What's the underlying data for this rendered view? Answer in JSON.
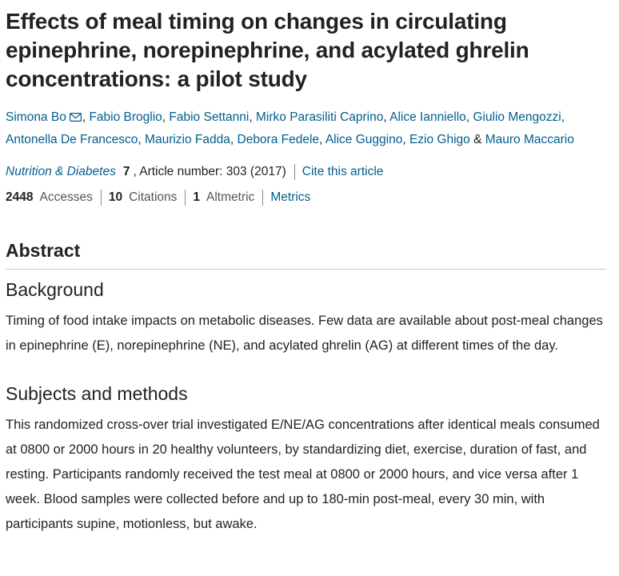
{
  "article": {
    "title": "Effects of meal timing on changes in circulating epinephrine, norepinephrine, and acylated ghrelin concentrations: a pilot study",
    "authors": [
      "Simona Bo",
      "Fabio Broglio",
      "Fabio Settanni",
      "Mirko Parasiliti Caprino",
      "Alice Ianniello",
      "Giulio Mengozzi",
      "Antonella De Francesco",
      "Maurizio Fadda",
      "Debora Fedele",
      "Alice Guggino",
      "Ezio Ghigo",
      "Mauro Maccario"
    ],
    "author_separator": ", ",
    "author_conjunction": " & ",
    "journal": "Nutrition & Diabetes",
    "volume": "7",
    "article_number": ", Article number: 303 (2017)",
    "cite_label": "Cite this article",
    "metrics": {
      "accesses_count": "2448",
      "accesses_label": "Accesses",
      "citations_count": "10",
      "citations_label": "Citations",
      "altmetric_count": "1",
      "altmetric_label": "Altmetric",
      "metrics_link": "Metrics"
    }
  },
  "abstract": {
    "heading": "Abstract",
    "sections": [
      {
        "heading": "Background",
        "text": "Timing of food intake impacts on metabolic diseases. Few data are available about post-meal changes in epinephrine (E), norepinephrine (NE), and acylated ghrelin (AG) at different times of the day."
      },
      {
        "heading": "Subjects and methods",
        "text": "This randomized cross-over trial investigated E/NE/AG concentrations after identical meals consumed at 0800 or 2000 hours in 20 healthy volunteers, by standardizing diet, exercise, duration of fast, and resting. Participants randomly received the test meal at 0800 or 2000 hours, and vice versa after 1 week. Blood samples were collected before and up to 180-min post-meal, every 30 min, with participants supine, motionless, but awake."
      }
    ]
  },
  "icons": {
    "corresponding_author": "mail-icon"
  },
  "colors": {
    "link": "#025e8d",
    "text": "#222222",
    "muted": "#555555",
    "rule": "#c8c8c8"
  }
}
